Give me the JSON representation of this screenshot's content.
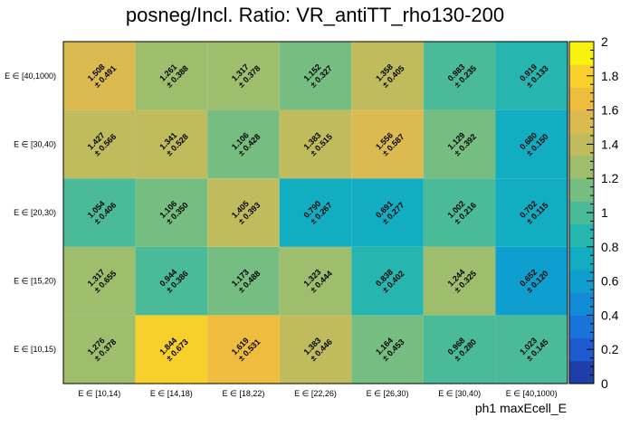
{
  "chart_data": {
    "type": "heatmap",
    "title": "posneg/Incl. Ratio: VR_antiTT_rho130-200",
    "xlabel": "ph1 maxEcell_E",
    "ylabel": "",
    "x_categories": [
      "E ∈ [10,14)",
      "E ∈ [14,18)",
      "E ∈ [18,22)",
      "E ∈ [22,26)",
      "E ∈ [26,30)",
      "E ∈ [30,40)",
      "E ∈ [40,1000)"
    ],
    "y_categories": [
      "E ∈ [10,15)",
      "E ∈ [15,20)",
      "E ∈ [20,30)",
      "E ∈ [30,40)",
      "E ∈ [40,1000)"
    ],
    "values": [
      [
        1.276,
        1.844,
        1.619,
        1.383,
        1.164,
        0.968,
        1.023
      ],
      [
        1.317,
        0.944,
        1.173,
        1.323,
        0.838,
        1.244,
        0.652
      ],
      [
        1.054,
        1.106,
        1.405,
        0.79,
        0.691,
        1.002,
        0.702
      ],
      [
        1.427,
        1.341,
        1.106,
        1.383,
        1.556,
        1.129,
        0.68
      ],
      [
        1.508,
        1.261,
        1.317,
        1.152,
        1.358,
        0.983,
        0.919
      ]
    ],
    "errors": [
      [
        0.378,
        0.673,
        0.531,
        0.446,
        0.453,
        0.28,
        0.145
      ],
      [
        0.655,
        0.386,
        0.488,
        0.444,
        0.402,
        0.325,
        0.12
      ],
      [
        0.406,
        0.35,
        0.393,
        0.267,
        0.277,
        0.216,
        0.115
      ],
      [
        0.566,
        0.528,
        0.428,
        0.515,
        0.587,
        0.392,
        0.15
      ],
      [
        0.491,
        0.388,
        0.378,
        0.327,
        0.405,
        0.235,
        0.133
      ]
    ],
    "zlim": [
      0,
      2
    ],
    "z_ticks": [
      "0",
      "0.2",
      "0.4",
      "0.6",
      "0.8",
      "1",
      "1.2",
      "1.4",
      "1.6",
      "1.8",
      "2"
    ],
    "colorbar_colors": [
      "#1f3fa8",
      "#1f5bd0",
      "#1a73d8",
      "#128bd6",
      "#0e9fcf",
      "#13adc2",
      "#27b5b0",
      "#4bba98",
      "#75bd80",
      "#9ebd6d",
      "#c0bb5d",
      "#dbbb50",
      "#efbd3d",
      "#f7d02c",
      "#f9f20e"
    ]
  }
}
